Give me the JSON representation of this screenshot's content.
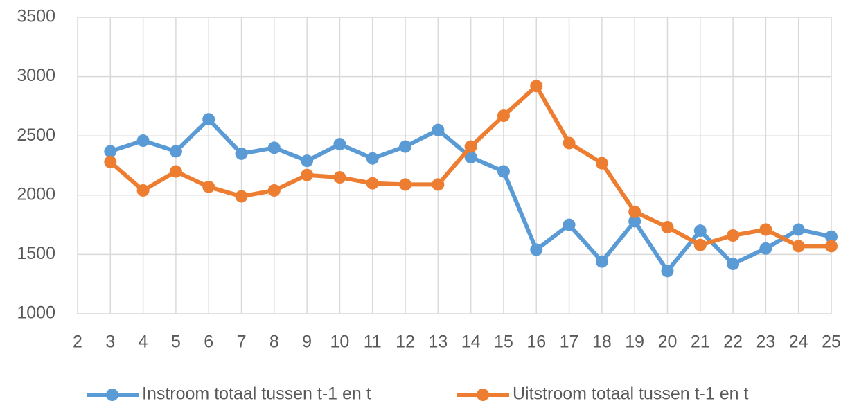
{
  "chart_data": {
    "type": "line",
    "xlim": [
      2,
      25
    ],
    "xticks": [
      2,
      3,
      4,
      5,
      6,
      7,
      8,
      9,
      10,
      11,
      12,
      13,
      14,
      15,
      16,
      17,
      18,
      19,
      20,
      21,
      22,
      23,
      24,
      25
    ],
    "ylim": [
      1000,
      3500
    ],
    "yticks": [
      1000,
      1500,
      2000,
      2500,
      3000,
      3500
    ],
    "grid": true,
    "legend": "bottom",
    "x": [
      3,
      4,
      5,
      6,
      7,
      8,
      9,
      10,
      11,
      12,
      13,
      14,
      15,
      16,
      17,
      18,
      19,
      20,
      21,
      22,
      23,
      24,
      25
    ],
    "series": [
      {
        "name": "Instroom totaal tussen t-1 en t",
        "color": "#5b9bd5",
        "values": [
          2370,
          2460,
          2370,
          2640,
          2350,
          2400,
          2290,
          2430,
          2310,
          2410,
          2550,
          2320,
          2200,
          1540,
          1750,
          1440,
          1780,
          1360,
          1700,
          1420,
          1550,
          1710,
          1650
        ]
      },
      {
        "name": "Uitstroom totaal tussen t-1 en t",
        "color": "#ed7d31",
        "values": [
          2280,
          2040,
          2200,
          2070,
          1990,
          2040,
          2170,
          2150,
          2100,
          2090,
          2090,
          2410,
          2670,
          2920,
          2440,
          2270,
          1860,
          1730,
          1580,
          1660,
          1710,
          1570,
          1570
        ]
      }
    ]
  }
}
